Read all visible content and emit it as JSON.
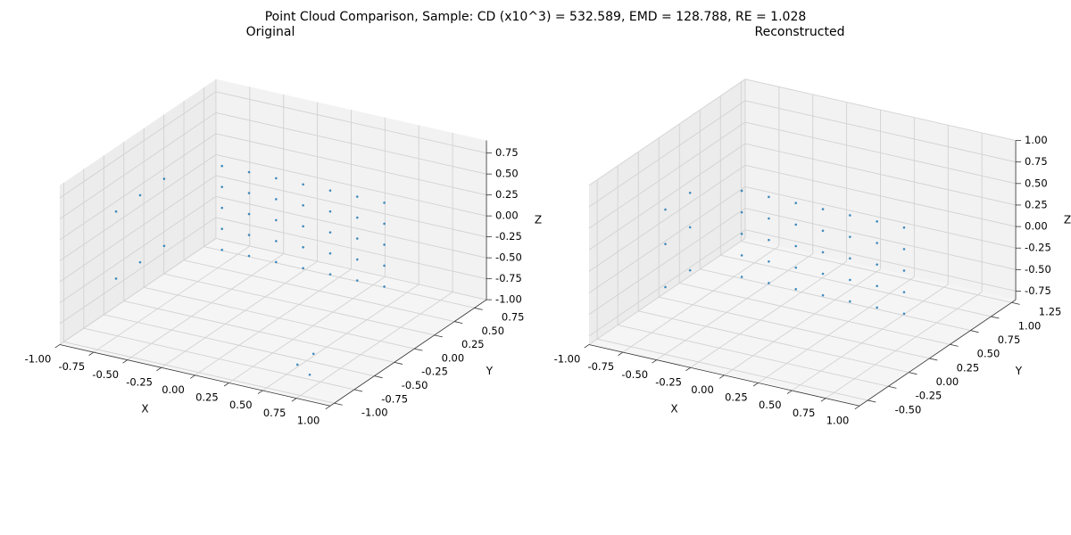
{
  "title": "Point Cloud Comparison, Sample: CD (x10^3) = 532.589, EMD = 128.788, RE = 1.028",
  "chart_data": [
    {
      "type": "scatter3d",
      "title": "Original",
      "xlabel": "X",
      "ylabel": "Y",
      "zlabel": "Z",
      "color": "#1f77b4",
      "xlim": [
        -1,
        1
      ],
      "ylim": [
        -1.05,
        0.9
      ],
      "zlim": [
        -1,
        0.9
      ],
      "xticks": [
        {
          "value": -1,
          "label": "-1.00"
        },
        -0.75,
        {
          "value": -0.5,
          "label": "-0.50"
        },
        -0.25,
        {
          "value": 0,
          "label": "0.00"
        },
        0.25,
        {
          "value": 0.5,
          "label": "0.50"
        },
        0.75,
        {
          "value": 1,
          "label": "1.00"
        }
      ],
      "yticks": [
        {
          "value": -1,
          "label": "-1.00"
        },
        -0.75,
        {
          "value": -0.5,
          "label": "-0.50"
        },
        -0.25,
        {
          "value": 0,
          "label": "0.00"
        },
        0.25,
        {
          "value": 0.5,
          "label": "0.50"
        },
        0.75
      ],
      "zticks": [
        {
          "value": -1,
          "label": "-1.00"
        },
        -0.75,
        {
          "value": -0.5,
          "label": "-0.50"
        },
        -0.25,
        {
          "value": 0,
          "label": "0.00"
        },
        0.25,
        {
          "value": 0.5,
          "label": "0.50"
        },
        0.75
      ],
      "x": [
        -0.6,
        -0.6,
        -0.6,
        -0.6,
        -0.6,
        -0.4,
        -0.4,
        -0.4,
        -0.4,
        -0.4,
        -0.2,
        -0.2,
        -0.2,
        -0.2,
        -0.2,
        0,
        0,
        0,
        0,
        0,
        0.2,
        0.2,
        0.2,
        0.2,
        0.2,
        0.4,
        0.4,
        0.4,
        0.4,
        0.4,
        0.6,
        0.6,
        0.6,
        0.6,
        0.6,
        -0.85,
        -0.85,
        -0.85,
        -0.85,
        -0.85,
        -0.85,
        0.55,
        0.55,
        0.7
      ],
      "y": [
        0.3,
        0.3,
        0.3,
        0.3,
        0.3,
        0.3,
        0.3,
        0.3,
        0.3,
        0.3,
        0.3,
        0.3,
        0.3,
        0.3,
        0.3,
        0.3,
        0.3,
        0.3,
        0.3,
        0.3,
        0.3,
        0.3,
        0.3,
        0.3,
        0.3,
        0.3,
        0.3,
        0.3,
        0.3,
        0.3,
        0.3,
        0.3,
        0.3,
        0.3,
        0.3,
        -0.6,
        -0.6,
        -0.3,
        -0.3,
        0,
        0,
        -0.7,
        -0.5,
        -0.8
      ],
      "z": [
        -0.6,
        -0.35,
        -0.1,
        0.15,
        0.4,
        -0.6,
        -0.35,
        -0.1,
        0.15,
        0.4,
        -0.6,
        -0.35,
        -0.1,
        0.15,
        0.4,
        -0.6,
        -0.35,
        -0.1,
        0.15,
        0.4,
        -0.6,
        -0.35,
        -0.1,
        0.15,
        0.4,
        -0.6,
        -0.35,
        -0.1,
        0.15,
        0.4,
        -0.6,
        -0.35,
        -0.1,
        0.15,
        0.4,
        0.35,
        -0.45,
        0.35,
        -0.45,
        0.35,
        -0.45,
        -0.9,
        -0.9,
        -0.9
      ]
    },
    {
      "type": "scatter3d",
      "title": "Reconstructed",
      "xlabel": "X",
      "ylabel": "Y",
      "zlabel": "Z",
      "color": "#1f77b4",
      "xlim": [
        -1,
        1
      ],
      "ylim": [
        -0.6,
        1.3
      ],
      "zlim": [
        -0.85,
        1.0
      ],
      "xticks": [
        {
          "value": -1,
          "label": "-1.00"
        },
        -0.75,
        {
          "value": -0.5,
          "label": "-0.50"
        },
        -0.25,
        {
          "value": 0,
          "label": "0.00"
        },
        0.25,
        {
          "value": 0.5,
          "label": "0.50"
        },
        0.75,
        {
          "value": 1,
          "label": "1.00"
        }
      ],
      "yticks": [
        {
          "value": -0.5,
          "label": "-0.50"
        },
        -0.25,
        {
          "value": 0,
          "label": "0.00"
        },
        0.25,
        {
          "value": 0.5,
          "label": "0.50"
        },
        0.75,
        {
          "value": 1,
          "label": "1.00"
        },
        1.25
      ],
      "zticks": [
        -0.75,
        {
          "value": -0.5,
          "label": "-0.50"
        },
        -0.25,
        {
          "value": 0,
          "label": "0.00"
        },
        0.25,
        {
          "value": 0.5,
          "label": "0.50"
        },
        0.75,
        {
          "value": 1,
          "label": "1.00"
        }
      ],
      "x": [
        -0.6,
        -0.6,
        -0.6,
        -0.6,
        -0.6,
        -0.4,
        -0.4,
        -0.4,
        -0.4,
        -0.4,
        -0.2,
        -0.2,
        -0.2,
        -0.2,
        -0.2,
        0,
        0,
        0,
        0,
        0,
        0.2,
        0.2,
        0.2,
        0.2,
        0.2,
        0.4,
        0.4,
        0.4,
        0.4,
        0.4,
        0.6,
        0.6,
        0.6,
        0.6,
        0.6,
        -0.8,
        -0.8,
        -0.8,
        -0.8,
        -0.8,
        -0.8
      ],
      "y": [
        0.6,
        0.6,
        0.6,
        0.6,
        0.6,
        0.6,
        0.6,
        0.6,
        0.6,
        0.6,
        0.6,
        0.6,
        0.6,
        0.6,
        0.6,
        0.6,
        0.6,
        0.6,
        0.6,
        0.6,
        0.6,
        0.6,
        0.6,
        0.6,
        0.6,
        0.6,
        0.6,
        0.6,
        0.6,
        0.6,
        0.6,
        0.6,
        0.6,
        0.6,
        0.6,
        0,
        0,
        0,
        0.3,
        0.3,
        0.3
      ],
      "z": [
        -0.7,
        -0.45,
        -0.2,
        0.05,
        0.3,
        -0.7,
        -0.45,
        -0.2,
        0.05,
        0.3,
        -0.7,
        -0.45,
        -0.2,
        0.05,
        0.3,
        -0.7,
        -0.45,
        -0.2,
        0.05,
        0.3,
        -0.7,
        -0.45,
        -0.2,
        0.05,
        0.3,
        -0.7,
        -0.45,
        -0.2,
        0.05,
        0.3,
        -0.7,
        -0.45,
        -0.2,
        0.05,
        0.3,
        -0.5,
        0,
        0.4,
        -0.5,
        0,
        0.4
      ]
    }
  ]
}
